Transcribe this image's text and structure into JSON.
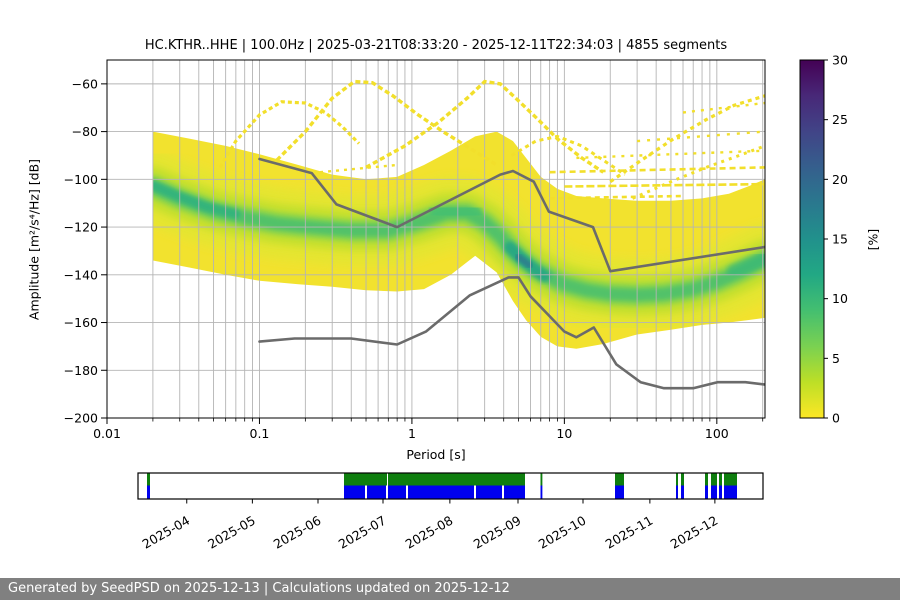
{
  "title": "HC.KTHR..HHE | 100.0Hz | 2025-03-21T08:33:20 - 2025-12-11T22:34:03 | 4855 segments",
  "footer": {
    "text": "Generated by SeedPSD on 2025-12-13 | Calculations updated on 2025-12-12",
    "bg": "#808080",
    "fg": "#ffffff"
  },
  "chart_data": {
    "type": "heatmap",
    "title": "HC.KTHR..HHE | 100.0Hz | 2025-03-21T08:33:20 - 2025-12-11T22:34:03 | 4855 segments",
    "xlabel": "Period [s]",
    "ylabel": "Amplitude [m²/s⁴/Hz] [dB]",
    "x_scale": "log",
    "xlim": [
      0.01,
      207
    ],
    "ylim": [
      -200,
      -50
    ],
    "x_tick_values": [
      0.01,
      0.1,
      1,
      10,
      100
    ],
    "x_tick_labels": [
      "0.01",
      "0.1",
      "1",
      "10",
      "100"
    ],
    "y_tick_values": [
      -60,
      -80,
      -100,
      -120,
      -140,
      -160,
      -180,
      -200
    ],
    "y_tick_labels": [
      "−60",
      "−80",
      "−100",
      "−120",
      "−140",
      "−160",
      "−180",
      "−200"
    ],
    "grid": true,
    "grid_color": "#b4b4b4",
    "colorbar": {
      "label": "[%]",
      "min": 0,
      "max": 30,
      "tick_values": [
        0,
        5,
        10,
        15,
        20,
        25,
        30
      ],
      "tick_labels": [
        "0",
        "5",
        "10",
        "15",
        "20",
        "25",
        "30"
      ],
      "gradient_bottom_to_top": [
        "#fde725",
        "#bddf26",
        "#7ad151",
        "#44bf70",
        "#22a884",
        "#21918c",
        "#2a788e",
        "#355f8d",
        "#414487",
        "#482878",
        "#440154"
      ]
    },
    "density": {
      "fill_color": "#f2e22e",
      "envelope_periods": [
        0.02,
        0.035,
        0.06,
        0.1,
        0.18,
        0.3,
        0.5,
        0.8,
        1.2,
        1.8,
        2.6,
        3.6,
        4.6,
        5.6,
        7,
        9,
        12,
        18,
        30,
        50,
        80,
        120,
        160,
        207
      ],
      "envelope_top_db": [
        -80,
        -83,
        -86,
        -89.5,
        -94,
        -98,
        -100,
        -99,
        -94,
        -88,
        -82,
        -80,
        -84,
        -91,
        -99,
        -104,
        -107,
        -108,
        -109,
        -109,
        -108,
        -106,
        -103,
        -100
      ],
      "envelope_bottom_db": [
        -134,
        -137,
        -140,
        -142.5,
        -144,
        -145,
        -146.5,
        -147,
        -146,
        -140,
        -132,
        -139,
        -151,
        -159,
        -166,
        -170,
        -171,
        -169,
        -165,
        -163,
        -161,
        -160,
        -159,
        -158
      ],
      "mode_line": [
        [
          0.02,
          -103
        ],
        [
          0.03,
          -108
        ],
        [
          0.05,
          -113
        ],
        [
          0.08,
          -116
        ],
        [
          0.13,
          -118.5
        ],
        [
          0.22,
          -120
        ],
        [
          0.4,
          -121.5
        ],
        [
          0.7,
          -121.5
        ],
        [
          1.1,
          -118
        ],
        [
          1.7,
          -114
        ],
        [
          2.3,
          -114
        ],
        [
          3,
          -118
        ],
        [
          3.8,
          -124
        ],
        [
          4.6,
          -130
        ],
        [
          5.5,
          -134.5
        ],
        [
          6.5,
          -138
        ],
        [
          8,
          -141
        ],
        [
          10,
          -144
        ],
        [
          14,
          -146.5
        ],
        [
          20,
          -148
        ],
        [
          30,
          -148.5
        ],
        [
          45,
          -148
        ],
        [
          70,
          -146
        ],
        [
          100,
          -143
        ],
        [
          140,
          -139
        ],
        [
          207,
          -133.5
        ]
      ],
      "mode_bands": [
        {
          "width_db": 30,
          "color": "#e3e632",
          "opacity": 0.9,
          "blur": 5
        },
        {
          "width_db": 17,
          "color": "#b8dd2c",
          "opacity": 0.75,
          "blur": 4
        },
        {
          "width_db": 9,
          "color": "#6ece58",
          "opacity": 0.8,
          "blur": 3
        },
        {
          "width_db": 5,
          "color": "#3fbc73",
          "opacity": 0.7,
          "blur": 2
        }
      ],
      "core_segments": [
        {
          "points": [
            [
              0.02,
              -102.5
            ],
            [
              0.028,
              -106.5
            ],
            [
              0.045,
              -111.5
            ],
            [
              0.07,
              -114.5
            ]
          ],
          "width_db": 4,
          "color": "#2ab07f",
          "opacity": 0.8,
          "blur": 2
        },
        {
          "points": [
            [
              1.5,
              -112.5
            ],
            [
              2.0,
              -113
            ],
            [
              2.5,
              -114.5
            ]
          ],
          "width_db": 8,
          "color": "#44bf70",
          "opacity": 0.8,
          "blur": 2.5
        },
        {
          "points": [
            [
              4.4,
              -128.5
            ],
            [
              5.0,
              -132
            ],
            [
              5.8,
              -135.5
            ],
            [
              6.6,
              -138.5
            ],
            [
              7.4,
              -140.5
            ]
          ],
          "width_db": 5,
          "color": "#21a585",
          "opacity": 0.9,
          "blur": 2
        },
        {
          "points": [
            [
              5.0,
              -132.5
            ],
            [
              5.9,
              -136
            ]
          ],
          "width_db": 2.8,
          "color": "#2c7e8e",
          "opacity": 0.9,
          "blur": 1.5
        },
        {
          "points": [
            [
              130,
              -138.5
            ],
            [
              207,
              -133
            ]
          ],
          "width_db": 6,
          "color": "#35b778",
          "opacity": 0.65,
          "blur": 2.5
        }
      ],
      "speckle_color": "#f2df2b",
      "speckle_arcs": [
        {
          "points": [
            [
              0.055,
              -95
            ],
            [
              0.07,
              -84
            ],
            [
              0.1,
              -73
            ],
            [
              0.14,
              -67.5
            ],
            [
              0.2,
              -68
            ],
            [
              0.27,
              -72
            ],
            [
              0.35,
              -78
            ],
            [
              0.45,
              -85
            ]
          ],
          "dash": "4 3",
          "width": 3.2
        },
        {
          "points": [
            [
              0.13,
              -92
            ],
            [
              0.2,
              -80
            ],
            [
              0.3,
              -66
            ],
            [
              0.42,
              -59
            ],
            [
              0.55,
              -59.5
            ],
            [
              0.75,
              -65
            ],
            [
              1.1,
              -73
            ],
            [
              1.6,
              -80
            ],
            [
              2.4,
              -87
            ],
            [
              3.6,
              -94
            ]
          ],
          "dash": "5 3",
          "width": 3.4
        },
        {
          "points": [
            [
              0.5,
              -95
            ],
            [
              0.9,
              -86
            ],
            [
              1.5,
              -76
            ],
            [
              2.3,
              -66
            ],
            [
              3.0,
              -59
            ],
            [
              3.8,
              -60
            ],
            [
              4.8,
              -66
            ],
            [
              6.5,
              -74
            ],
            [
              9,
              -83
            ],
            [
              13,
              -91
            ],
            [
              18,
              -97
            ]
          ],
          "dash": "5 3",
          "width": 3.4
        },
        {
          "points": [
            [
              4.5,
              -90
            ],
            [
              6.5,
              -84
            ],
            [
              9,
              -82
            ],
            [
              13,
              -86
            ],
            [
              18,
              -92
            ],
            [
              25,
              -98
            ]
          ],
          "dash": "4 4",
          "width": 3
        },
        {
          "points": [
            [
              20,
              -101
            ],
            [
              32,
              -92
            ],
            [
              52,
              -83
            ],
            [
              85,
              -75
            ],
            [
              130,
              -69
            ],
            [
              207,
              -65
            ]
          ],
          "dash": "4 4",
          "width": 3.2
        },
        {
          "points": [
            [
              28,
              -108
            ],
            [
              50,
              -101
            ],
            [
              85,
              -95
            ],
            [
              140,
              -90
            ],
            [
              207,
              -86
            ]
          ],
          "dash": "3 5",
          "width": 3
        }
      ],
      "speckle_dashes": [
        {
          "points": [
            [
              8,
              -97
            ],
            [
              207,
              -95
            ]
          ],
          "dash": "6 4",
          "width": 2.6
        },
        {
          "points": [
            [
              10,
              -103
            ],
            [
              207,
              -102
            ]
          ],
          "dash": "8 3",
          "width": 2.6
        },
        {
          "points": [
            [
              12,
              -91
            ],
            [
              207,
              -88
            ]
          ],
          "dash": "3 6",
          "width": 2.4
        },
        {
          "points": [
            [
              30,
              -84
            ],
            [
              207,
              -80
            ]
          ],
          "dash": "3 7",
          "width": 2.4
        },
        {
          "points": [
            [
              7,
              -108
            ],
            [
              60,
              -107
            ]
          ],
          "dash": "5 4",
          "width": 2.6
        },
        {
          "points": [
            [
              60,
              -72
            ],
            [
              207,
              -68
            ]
          ],
          "dash": "3 6",
          "width": 2.4
        },
        {
          "points": [
            [
              0.25,
              -97
            ],
            [
              0.8,
              -94
            ]
          ],
          "dash": "3 5",
          "width": 2.4
        }
      ]
    },
    "noise_models": {
      "color": "#6b6b6b",
      "line_width": 2.6,
      "nhnm": [
        [
          0.1,
          -91.5
        ],
        [
          0.22,
          -97.4
        ],
        [
          0.32,
          -110.5
        ],
        [
          0.8,
          -120
        ],
        [
          3.8,
          -98
        ],
        [
          4.6,
          -96.5
        ],
        [
          6.3,
          -101
        ],
        [
          7.9,
          -113.5
        ],
        [
          15.4,
          -120
        ],
        [
          20,
          -138.5
        ],
        [
          354.8,
          -126
        ]
      ],
      "nlnm": [
        [
          0.1,
          -168
        ],
        [
          0.17,
          -166.7
        ],
        [
          0.4,
          -166.7
        ],
        [
          0.8,
          -169.2
        ],
        [
          1.24,
          -163.7
        ],
        [
          2.4,
          -148.6
        ],
        [
          4.3,
          -141.1
        ],
        [
          5,
          -141.1
        ],
        [
          6,
          -149
        ],
        [
          10,
          -163.8
        ],
        [
          12,
          -166.2
        ],
        [
          15.6,
          -162.1
        ],
        [
          21.9,
          -177.5
        ],
        [
          31.6,
          -185
        ],
        [
          45,
          -187.5
        ],
        [
          70,
          -187.5
        ],
        [
          101,
          -185
        ],
        [
          154,
          -185
        ],
        [
          328,
          -187.5
        ]
      ]
    }
  },
  "timeline": {
    "green_color": "#0e7e0e",
    "blue_color": "#0000ee",
    "months": [
      {
        "label": "2025-04",
        "f": 0.078
      },
      {
        "label": "2025-05",
        "f": 0.183
      },
      {
        "label": "2025-06",
        "f": 0.288
      },
      {
        "label": "2025-07",
        "f": 0.392
      },
      {
        "label": "2025-08",
        "f": 0.499
      },
      {
        "label": "2025-09",
        "f": 0.608
      },
      {
        "label": "2025-10",
        "f": 0.712
      },
      {
        "label": "2025-11",
        "f": 0.819
      },
      {
        "label": "2025-12",
        "f": 0.923
      }
    ],
    "green_bars": [
      [
        0.0144,
        0.0192
      ],
      [
        0.3296,
        0.3984
      ],
      [
        0.4,
        0.6192
      ],
      [
        0.644,
        0.647
      ],
      [
        0.7632,
        0.7776
      ],
      [
        0.8608,
        0.864
      ],
      [
        0.8688,
        0.8736
      ],
      [
        0.9072,
        0.912
      ],
      [
        0.9168,
        0.9264
      ],
      [
        0.9296,
        0.9344
      ],
      [
        0.9376,
        0.9584
      ]
    ],
    "blue_bars": [
      [
        0.0144,
        0.0192
      ],
      [
        0.3296,
        0.3632
      ],
      [
        0.3664,
        0.3968
      ],
      [
        0.4,
        0.4288
      ],
      [
        0.432,
        0.5376
      ],
      [
        0.5408,
        0.5824
      ],
      [
        0.5856,
        0.6192
      ],
      [
        0.644,
        0.647
      ],
      [
        0.7632,
        0.7776
      ],
      [
        0.8608,
        0.864
      ],
      [
        0.8688,
        0.8736
      ],
      [
        0.9072,
        0.912
      ],
      [
        0.9168,
        0.9264
      ],
      [
        0.9296,
        0.9344
      ],
      [
        0.9376,
        0.9584
      ]
    ]
  }
}
